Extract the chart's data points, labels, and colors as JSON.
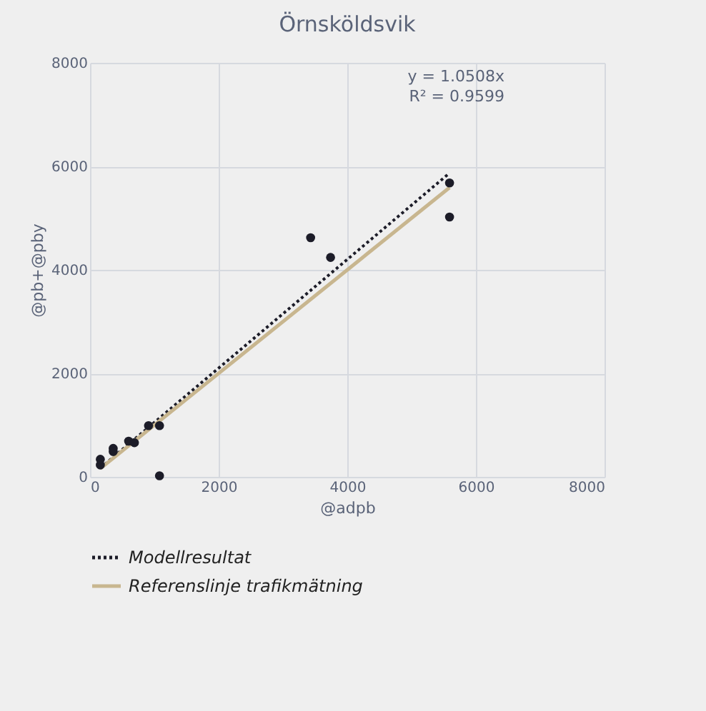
{
  "chart_data": {
    "type": "scatter",
    "title": "Örnsköldsvik",
    "xlabel": "@adpb",
    "ylabel": "@pb+@pby",
    "xlim": [
      0,
      8000
    ],
    "xticks": [
      0,
      2000,
      4000,
      6000,
      8000
    ],
    "ylim": [
      0,
      8000
    ],
    "yticks": [
      0,
      2000,
      4000,
      6000,
      8000
    ],
    "grid": true,
    "legend": "bottom",
    "annotations": [
      "y = 1.0508x",
      "R² = 0.9599"
    ],
    "series": [
      {
        "marker": "circle",
        "color": "#1c1c28",
        "x": [
          160,
          160,
          360,
          360,
          600,
          690,
          910,
          1080,
          1080,
          3430,
          3740,
          5590,
          5590
        ],
        "values": [
          230,
          340,
          550,
          490,
          690,
          660,
          990,
          990,
          20,
          4620,
          4240,
          5680,
          5020
        ]
      },
      {
        "type": "line",
        "marker": "none",
        "name": "Modellresultat",
        "color": "#1c1c28",
        "line_style": "dotted",
        "x": [
          160,
          5590
        ],
        "values": [
          170,
          5870
        ]
      },
      {
        "type": "line",
        "marker": "none",
        "name": "Referenslinje trafikmätning",
        "color": "#c8b68f",
        "line_style": "solid",
        "x": [
          160,
          5590
        ],
        "values": [
          160,
          5590
        ]
      }
    ]
  }
}
